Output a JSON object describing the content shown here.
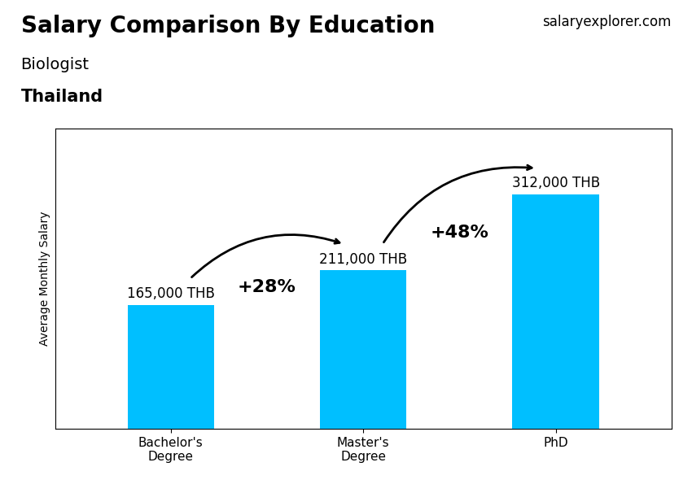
{
  "chart_data": {
    "type": "bar",
    "title": "Salary Comparison By Education",
    "subtitle": [
      "Biologist",
      "Thailand"
    ],
    "ylabel": "Average Monthly Salary",
    "categories": [
      "Bachelor's\nDegree",
      "Master's\nDegree",
      "PhD"
    ],
    "values": [
      165000,
      211000,
      312000
    ],
    "value_labels": [
      "165,000 THB",
      "211,000 THB",
      "312,000 THB"
    ],
    "data_labels": true,
    "color": "#00BFFF",
    "ylim": [
      0,
      400000
    ],
    "tick_labels": "x",
    "annotations": [
      {
        "text": "+28%",
        "from": "Bachelor's\nDegree",
        "to": "Master's\nDegree"
      },
      {
        "text": "+48%",
        "from": "Master's\nDegree",
        "to": "PhD"
      },
      {
        "text": "salaryexplorer.com"
      }
    ]
  }
}
